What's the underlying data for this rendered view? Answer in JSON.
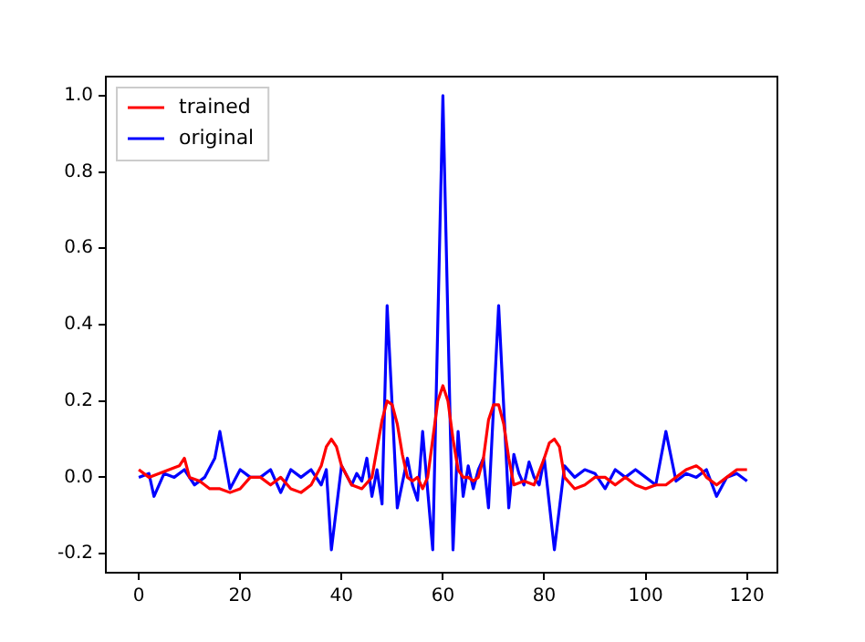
{
  "chart_data": {
    "type": "line",
    "xlim": [
      -6.5,
      126
    ],
    "ylim": [
      -0.25,
      1.05
    ],
    "xticks": [
      0,
      20,
      40,
      60,
      80,
      100,
      120
    ],
    "yticks": [
      {
        "value": -0.2,
        "label": "-0.2"
      },
      {
        "value": 0,
        "label": "0.0"
      },
      {
        "value": 0.2,
        "label": "0.2"
      },
      {
        "value": 0.4,
        "label": "0.4"
      },
      {
        "value": 0.6,
        "label": "0.6"
      },
      {
        "value": 0.8,
        "label": "0.8"
      },
      {
        "value": 1,
        "label": "1.0"
      }
    ],
    "grid": false,
    "legend": "top left",
    "marker": "none",
    "line_style": "solid",
    "series": [
      {
        "name": "trained",
        "color": "#ff0000",
        "x": [
          0,
          2,
          4,
          6,
          8,
          9,
          10,
          12,
          14,
          16,
          18,
          20,
          22,
          24,
          26,
          28,
          30,
          32,
          34,
          36,
          37,
          38,
          39,
          40,
          42,
          44,
          46,
          48,
          49,
          50,
          51,
          52,
          53,
          54,
          55,
          56,
          57,
          58,
          59,
          60,
          61,
          62,
          63,
          64,
          65,
          66,
          67,
          68,
          69,
          70,
          71,
          72,
          73,
          74,
          76,
          78,
          80,
          81,
          82,
          83,
          84,
          86,
          88,
          90,
          92,
          94,
          96,
          98,
          100,
          102,
          104,
          106,
          108,
          110,
          111,
          112,
          114,
          116,
          118,
          120
        ],
        "values": [
          0.02,
          0.0,
          0.01,
          0.02,
          0.03,
          0.05,
          0.0,
          -0.01,
          -0.03,
          -0.03,
          -0.04,
          -0.03,
          0.0,
          0.0,
          -0.02,
          0.0,
          -0.03,
          -0.04,
          -0.02,
          0.03,
          0.08,
          0.1,
          0.08,
          0.03,
          -0.02,
          -0.03,
          0.0,
          0.15,
          0.2,
          0.19,
          0.14,
          0.06,
          0.0,
          -0.01,
          0.0,
          -0.03,
          0.0,
          0.1,
          0.2,
          0.24,
          0.2,
          0.1,
          0.02,
          0.0,
          0.0,
          -0.01,
          0.0,
          0.05,
          0.15,
          0.19,
          0.19,
          0.14,
          0.05,
          -0.02,
          -0.01,
          -0.02,
          0.05,
          0.09,
          0.1,
          0.08,
          0.0,
          -0.03,
          -0.02,
          0.0,
          0.0,
          -0.02,
          0.0,
          -0.02,
          -0.03,
          -0.02,
          -0.02,
          0.0,
          0.02,
          0.03,
          0.02,
          0.0,
          -0.02,
          0.0,
          0.02,
          0.02
        ]
      },
      {
        "name": "original",
        "color": "#0000ff",
        "x": [
          0,
          2,
          3,
          5,
          7,
          9,
          11,
          13,
          15,
          16,
          18,
          20,
          22,
          24,
          26,
          28,
          30,
          32,
          34,
          36,
          37,
          38,
          40,
          42,
          43,
          44,
          45,
          46,
          47,
          48,
          49,
          51,
          53,
          54,
          55,
          56,
          58,
          60,
          62,
          63,
          64,
          65,
          66,
          67,
          68,
          69,
          71,
          73,
          74,
          75,
          76,
          77,
          78,
          79,
          80,
          82,
          84,
          86,
          88,
          90,
          92,
          94,
          96,
          98,
          100,
          102,
          104,
          106,
          108,
          110,
          112,
          114,
          116,
          118,
          120
        ],
        "values": [
          0.0,
          0.01,
          -0.05,
          0.01,
          0.0,
          0.02,
          -0.02,
          0.0,
          0.05,
          0.12,
          -0.03,
          0.02,
          0.0,
          0.0,
          0.02,
          -0.04,
          0.02,
          0.0,
          0.02,
          -0.02,
          0.02,
          -0.19,
          0.03,
          -0.02,
          0.01,
          -0.01,
          0.05,
          -0.05,
          0.02,
          -0.07,
          0.45,
          -0.08,
          0.05,
          -0.02,
          -0.06,
          0.12,
          -0.19,
          1.0,
          -0.19,
          0.12,
          -0.05,
          0.03,
          -0.03,
          0.02,
          0.05,
          -0.08,
          0.45,
          -0.08,
          0.06,
          0.01,
          -0.02,
          0.04,
          0.0,
          -0.02,
          0.05,
          -0.19,
          0.03,
          0.0,
          0.02,
          0.01,
          -0.03,
          0.02,
          0.0,
          0.02,
          0.0,
          -0.02,
          0.12,
          -0.01,
          0.01,
          0.0,
          0.02,
          -0.05,
          0.0,
          0.01,
          -0.01
        ]
      }
    ]
  }
}
